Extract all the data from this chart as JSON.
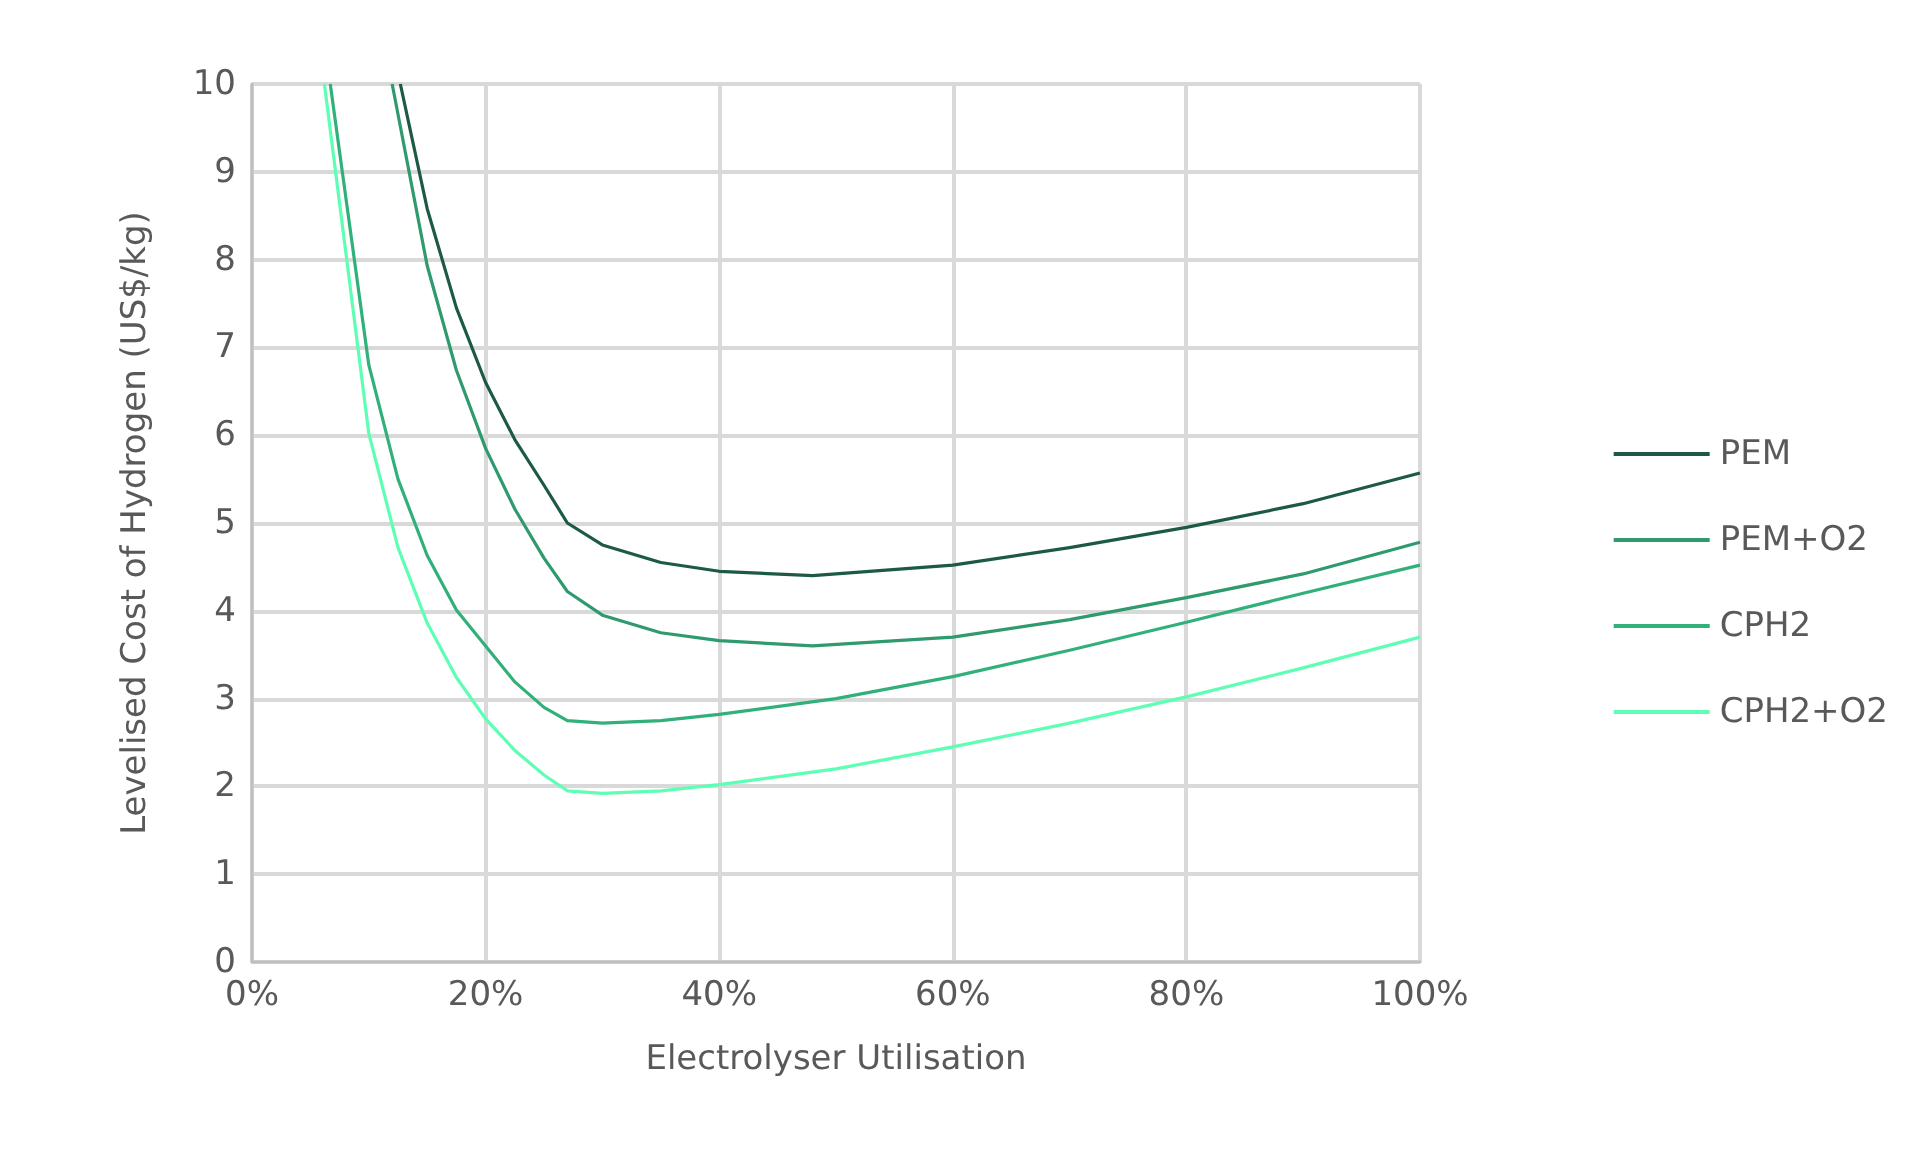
{
  "chart_data": {
    "type": "line",
    "xlabel": "Electrolyser Utilisation",
    "ylabel": "Levelised Cost of Hydrogen (US$/kg)",
    "xlim": [
      0,
      100
    ],
    "xticks": [
      {
        "value": 0,
        "label": "0%"
      },
      {
        "value": 20,
        "label": "20%"
      },
      {
        "value": 40,
        "label": "40%"
      },
      {
        "value": 60,
        "label": "60%"
      },
      {
        "value": 80,
        "label": "80%"
      },
      {
        "value": 100,
        "label": "100%"
      }
    ],
    "ylim": [
      0,
      10
    ],
    "yticks": [
      0,
      1,
      2,
      3,
      4,
      5,
      6,
      7,
      8,
      9,
      10
    ],
    "grid": true,
    "legend": "right",
    "marker": "none",
    "line_style": "solid",
    "series": [
      {
        "name": "PEM",
        "color": "#1d5a45",
        "x": [
          12.7,
          15,
          17.5,
          20,
          22.5,
          25,
          27,
          30,
          35,
          40,
          48,
          60,
          70,
          80,
          90,
          100
        ],
        "values": [
          10,
          8.58,
          7.45,
          6.6,
          5.95,
          5.43,
          5.0,
          4.75,
          4.55,
          4.45,
          4.4,
          4.52,
          4.72,
          4.95,
          5.22,
          5.57
        ]
      },
      {
        "name": "PEM+O2",
        "color": "#2e9a6e",
        "x": [
          12,
          15,
          17.5,
          20,
          22.5,
          25,
          27,
          30,
          35,
          40,
          48,
          60,
          70,
          80,
          90,
          100
        ],
        "values": [
          10,
          7.93,
          6.74,
          5.85,
          5.16,
          4.6,
          4.22,
          3.95,
          3.75,
          3.66,
          3.6,
          3.7,
          3.9,
          4.15,
          4.42,
          4.78
        ]
      },
      {
        "name": "CPH2",
        "color": "#32b07a",
        "x": [
          6.7,
          10,
          12.5,
          15,
          17.5,
          20,
          22.5,
          25,
          27,
          30,
          35,
          40,
          50,
          60,
          70,
          80,
          90,
          100
        ],
        "values": [
          10,
          6.8,
          5.5,
          4.63,
          4.01,
          3.6,
          3.19,
          2.9,
          2.75,
          2.72,
          2.75,
          2.82,
          3.0,
          3.25,
          3.55,
          3.87,
          4.2,
          4.52
        ]
      },
      {
        "name": "CPH2+O2",
        "color": "#5effb5",
        "x": [
          6.2,
          10,
          12.5,
          15,
          17.5,
          20,
          22.5,
          25,
          27,
          30,
          35,
          40,
          50,
          60,
          70,
          80,
          90,
          100
        ],
        "values": [
          10,
          6.02,
          4.72,
          3.86,
          3.24,
          2.77,
          2.41,
          2.13,
          1.95,
          1.92,
          1.95,
          2.02,
          2.2,
          2.45,
          2.72,
          3.02,
          3.35,
          3.7
        ]
      }
    ]
  }
}
